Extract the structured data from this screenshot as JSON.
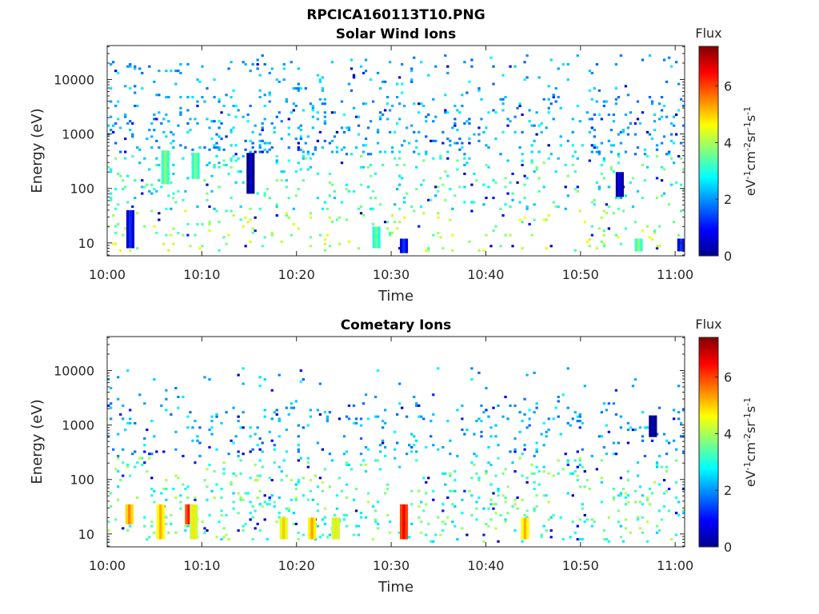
{
  "figure_title": "RPCICA160113T10.PNG",
  "chart_data": [
    {
      "type": "heatmap",
      "title": "Solar Wind Ions",
      "xlabel": "Time",
      "ylabel": "Energy (eV)",
      "x_ticks": [
        "10:00",
        "10:10",
        "10:20",
        "10:30",
        "10:40",
        "10:50",
        "11:00"
      ],
      "x_range_minutes": [
        0,
        61
      ],
      "y_scale": "log",
      "y_ticks": [
        10,
        100,
        1000,
        10000
      ],
      "y_tick_labels": [
        "10",
        "100",
        "1000",
        "10000"
      ],
      "y_range": [
        5.8,
        42000
      ],
      "colorbar": {
        "title": "Flux",
        "unit_label": "eV⁻¹cm⁻²sr⁻¹s⁻¹",
        "range": [
          0,
          7.4
        ],
        "ticks": [
          0,
          2,
          4,
          6
        ]
      },
      "features": [
        {
          "time_min": 2.3,
          "energy_low": 8,
          "energy_high": 40,
          "flux": 1.2
        },
        {
          "time_min": 6.0,
          "energy_low": 120,
          "energy_high": 500,
          "flux": 3.8
        },
        {
          "time_min": 9.2,
          "energy_low": 150,
          "energy_high": 450,
          "flux": 3.7
        },
        {
          "time_min": 15.0,
          "energy_low": 80,
          "energy_high": 450,
          "flux": 0.6
        },
        {
          "time_min": 28.3,
          "energy_low": 8,
          "energy_high": 20,
          "flux": 3.6
        },
        {
          "time_min": 31.2,
          "energy_low": 6.5,
          "energy_high": 12,
          "flux": 1.3
        },
        {
          "time_min": 54.0,
          "energy_low": 70,
          "energy_high": 200,
          "flux": 0.8
        },
        {
          "time_min": 56.0,
          "energy_low": 7,
          "energy_high": 12,
          "flux": 3.8
        },
        {
          "time_min": 60.5,
          "energy_low": 7,
          "energy_high": 12,
          "flux": 1.3
        }
      ]
    },
    {
      "type": "heatmap",
      "title": "Cometary Ions",
      "xlabel": "Time",
      "ylabel": "Energy (eV)",
      "x_ticks": [
        "10:00",
        "10:10",
        "10:20",
        "10:30",
        "10:40",
        "10:50",
        "11:00"
      ],
      "x_range_minutes": [
        0,
        61
      ],
      "y_scale": "log",
      "y_ticks": [
        10,
        100,
        1000,
        10000
      ],
      "y_tick_labels": [
        "10",
        "100",
        "1000",
        "10000"
      ],
      "y_range": [
        5.8,
        42000
      ],
      "colorbar": {
        "title": "Flux",
        "unit_label": "eV⁻¹cm⁻²sr⁻¹s⁻¹",
        "range": [
          0,
          7.4
        ],
        "ticks": [
          0,
          2,
          4,
          6
        ]
      },
      "features": [
        {
          "time_min": 2.2,
          "energy_low": 15,
          "energy_high": 35,
          "flux": 5.5
        },
        {
          "time_min": 5.5,
          "energy_low": 8,
          "energy_high": 35,
          "flux": 5.2
        },
        {
          "time_min": 8.5,
          "energy_low": 15,
          "energy_high": 35,
          "flux": 6.5
        },
        {
          "time_min": 9.0,
          "energy_low": 8,
          "energy_high": 35,
          "flux": 4.8
        },
        {
          "time_min": 18.5,
          "energy_low": 8,
          "energy_high": 20,
          "flux": 5.0
        },
        {
          "time_min": 21.5,
          "energy_low": 8,
          "energy_high": 20,
          "flux": 5.3
        },
        {
          "time_min": 24.0,
          "energy_low": 8,
          "energy_high": 20,
          "flux": 4.8
        },
        {
          "time_min": 31.2,
          "energy_low": 8,
          "energy_high": 35,
          "flux": 6.6
        },
        {
          "time_min": 44.0,
          "energy_low": 8,
          "energy_high": 20,
          "flux": 5.2
        },
        {
          "time_min": 57.5,
          "energy_low": 600,
          "energy_high": 1500,
          "flux": 0.4
        }
      ]
    }
  ]
}
